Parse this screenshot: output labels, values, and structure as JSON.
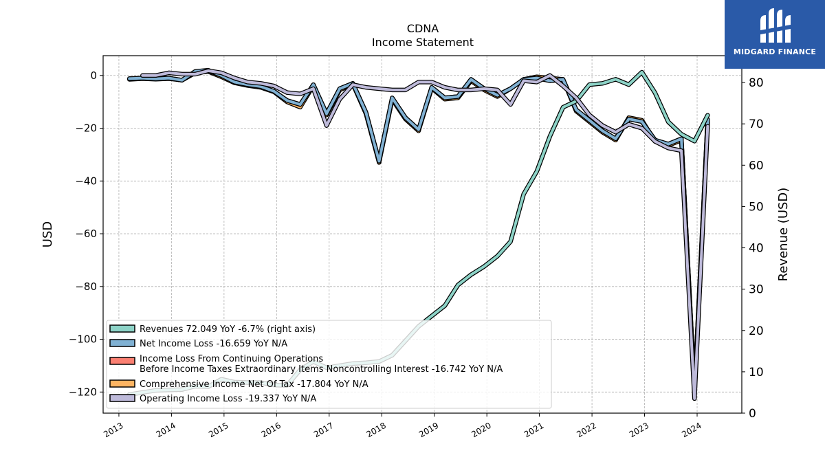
{
  "brand": {
    "name": "MIDGARD FINANCE",
    "icon": "midgard-m-logo-icon",
    "bg_color": "#2a5aa8"
  },
  "chart_data": {
    "type": "line",
    "title": "CDNA",
    "subtitle": "Income Statement",
    "ylabel": "USD",
    "y2label": "Revenue (USD)",
    "ylim": [
      -128,
      7.5
    ],
    "y2lim": [
      0,
      86.5
    ],
    "xlim": [
      2012.7,
      2024.85
    ],
    "x_ticks": [
      "2013",
      "2014",
      "2015",
      "2016",
      "2017",
      "2018",
      "2019",
      "2020",
      "2021",
      "2022",
      "2023",
      "2024"
    ],
    "y_ticks": [
      "0",
      "−20",
      "−40",
      "−60",
      "−80",
      "−100",
      "−120"
    ],
    "y2_ticks": [
      "0",
      "10",
      "20",
      "30",
      "40",
      "50",
      "60",
      "70",
      "80"
    ],
    "grid": true,
    "legend_position": "lower-left",
    "series": [
      {
        "name": "Revenues  72.049 YoY -6.7% (right axis)",
        "color": "#8dd3c7",
        "axis": "right",
        "x": [
          2013.2,
          2013.45,
          2013.7,
          2013.95,
          2014.2,
          2014.45,
          2014.7,
          2014.95,
          2015.2,
          2015.45,
          2015.7,
          2015.95,
          2016.2,
          2016.45,
          2016.7,
          2016.95,
          2017.2,
          2017.45,
          2017.7,
          2017.95,
          2018.2,
          2018.45,
          2018.7,
          2018.95,
          2019.2,
          2019.45,
          2019.7,
          2019.95,
          2020.2,
          2020.45,
          2020.7,
          2020.95,
          2021.2,
          2021.45,
          2021.7,
          2021.95,
          2022.2,
          2022.45,
          2022.7,
          2022.95,
          2023.2,
          2023.45,
          2023.7,
          2023.95,
          2024.2
        ],
        "y": [
          4.5,
          5.0,
          5.5,
          5.6,
          5.7,
          6.5,
          6.4,
          8.2,
          7.5,
          7.4,
          7.4,
          6.8,
          6.7,
          10.5,
          12.5,
          11.0,
          11.5,
          12.0,
          12.2,
          12.5,
          14.0,
          17.5,
          21.0,
          23.5,
          26.0,
          31.0,
          33.5,
          35.5,
          38.0,
          41.5,
          53.0,
          58.5,
          67.0,
          74.0,
          75.5,
          79.5,
          79.8,
          80.8,
          79.5,
          82.5,
          77.5,
          70.5,
          67.5,
          65.8,
          72.1
        ]
      },
      {
        "name": "Net Income Loss  -16.659 YoY N/A",
        "color": "#80b1d3",
        "axis": "left",
        "x": [
          2013.2,
          2013.45,
          2013.7,
          2013.95,
          2014.2,
          2014.45,
          2014.7,
          2014.95,
          2015.2,
          2015.45,
          2015.7,
          2015.95,
          2016.2,
          2016.45,
          2016.7,
          2016.95,
          2017.2,
          2017.45,
          2017.7,
          2017.95,
          2018.2,
          2018.45,
          2018.7,
          2018.95,
          2019.2,
          2019.45,
          2019.7,
          2019.95,
          2020.2,
          2020.45,
          2020.7,
          2020.95,
          2021.2,
          2021.45,
          2021.7,
          2021.95,
          2022.2,
          2022.45,
          2022.7,
          2022.95,
          2023.2,
          2023.45,
          2023.7,
          2023.95,
          2024.2
        ],
        "y": [
          -1.2,
          -1.0,
          -1.3,
          -1.0,
          -1.8,
          1.5,
          2.0,
          0.0,
          -2.5,
          -3.5,
          -4.2,
          -6.0,
          -9.5,
          -11.0,
          -3.5,
          -14.5,
          -5.0,
          -3.0,
          -14.0,
          -32.5,
          -8.5,
          -16.0,
          -20.5,
          -4.5,
          -8.5,
          -8.0,
          -1.5,
          -5.0,
          -7.5,
          -5.0,
          -1.5,
          -1.0,
          -2.0,
          -1.5,
          -13.0,
          -17.0,
          -21.0,
          -24.0,
          -16.5,
          -17.5,
          -24.5,
          -26.0,
          -24.0,
          -119.5,
          -16.7
        ]
      },
      {
        "name": "Income Loss From Continuing Operations\nBefore Income Taxes Extraordinary Items Noncontrolling Interest  -16.742 YoY N/A",
        "color": "#fb8072",
        "axis": "left",
        "x": [
          2013.2,
          2013.45,
          2013.7,
          2013.95,
          2014.2,
          2014.45,
          2014.7,
          2014.95,
          2015.2,
          2015.45,
          2015.7,
          2015.95,
          2016.2,
          2016.45,
          2016.7,
          2016.95,
          2017.2,
          2017.45,
          2017.7,
          2017.95,
          2018.2,
          2018.45,
          2018.7,
          2018.95,
          2019.2,
          2019.45,
          2019.7,
          2019.95,
          2020.2,
          2020.45,
          2020.7,
          2020.95,
          2021.2,
          2021.45,
          2021.7,
          2021.95,
          2022.2,
          2022.45,
          2022.7,
          2022.95,
          2023.2,
          2023.45,
          2023.7,
          2023.95,
          2024.2
        ],
        "y": [
          -1.2,
          -1.0,
          -1.3,
          -1.0,
          -1.8,
          1.0,
          1.8,
          0.0,
          -2.5,
          -3.5,
          -4.2,
          -6.0,
          -9.5,
          -11.0,
          -3.5,
          -14.5,
          -5.0,
          -3.0,
          -14.0,
          -32.5,
          -8.5,
          -16.0,
          -20.5,
          -4.5,
          -8.5,
          -8.0,
          -1.5,
          -5.0,
          -7.5,
          -5.0,
          -1.5,
          -1.0,
          -2.0,
          -1.5,
          -13.0,
          -17.0,
          -21.0,
          -24.0,
          -16.5,
          -17.5,
          -24.5,
          -26.0,
          -24.0,
          -119.5,
          -16.7
        ]
      },
      {
        "name": "Comprehensive Income Net Of Tax  -17.804 YoY N/A",
        "color": "#fdb462",
        "axis": "left",
        "x": [
          2013.2,
          2013.45,
          2013.7,
          2013.95,
          2014.2,
          2014.45,
          2014.7,
          2014.95,
          2015.2,
          2015.45,
          2015.7,
          2015.95,
          2016.2,
          2016.45,
          2016.7,
          2016.95,
          2017.2,
          2017.45,
          2017.7,
          2017.95,
          2018.2,
          2018.45,
          2018.7,
          2018.95,
          2019.2,
          2019.45,
          2019.7,
          2019.95,
          2020.2,
          2020.45,
          2020.7,
          2020.95,
          2021.2,
          2021.45,
          2021.7,
          2021.95,
          2022.2,
          2022.45,
          2022.7,
          2022.95,
          2023.2,
          2023.45,
          2023.7,
          2023.95,
          2024.2
        ],
        "y": [
          -1.5,
          -1.2,
          -1.4,
          -1.2,
          -1.8,
          1.0,
          1.5,
          -0.5,
          -2.8,
          -3.8,
          -4.5,
          -6.2,
          -10.0,
          -12.0,
          -3.8,
          -15.0,
          -5.5,
          -3.2,
          -14.5,
          -33.0,
          -9.0,
          -16.5,
          -21.0,
          -4.8,
          -9.0,
          -8.5,
          -2.0,
          -5.5,
          -8.0,
          -5.0,
          -1.5,
          -0.5,
          -1.0,
          -1.5,
          -13.5,
          -17.5,
          -21.5,
          -24.5,
          -16.0,
          -17.0,
          -25.0,
          -26.5,
          -24.5,
          -121.0,
          -17.8
        ]
      },
      {
        "name": "Operating Income Loss  -19.337 YoY N/A",
        "color": "#bebada",
        "axis": "left",
        "x": [
          2013.45,
          2013.7,
          2013.95,
          2014.2,
          2014.45,
          2014.7,
          2014.95,
          2015.2,
          2015.45,
          2015.7,
          2015.95,
          2016.2,
          2016.45,
          2016.7,
          2016.95,
          2017.2,
          2017.45,
          2017.7,
          2017.95,
          2018.2,
          2018.45,
          2018.7,
          2018.95,
          2019.2,
          2019.45,
          2019.7,
          2019.95,
          2020.2,
          2020.45,
          2020.7,
          2020.95,
          2021.2,
          2021.45,
          2021.7,
          2021.95,
          2022.2,
          2022.45,
          2022.7,
          2022.95,
          2023.2,
          2023.45,
          2023.7,
          2023.95,
          2024.2
        ],
        "y": [
          0.0,
          0.0,
          1.0,
          0.5,
          0.5,
          1.8,
          1.0,
          -1.0,
          -2.5,
          -3.0,
          -4.0,
          -6.5,
          -7.0,
          -5.0,
          -19.0,
          -9.0,
          -3.5,
          -4.5,
          -5.0,
          -5.5,
          -5.5,
          -2.5,
          -2.5,
          -4.5,
          -5.5,
          -5.5,
          -5.0,
          -5.5,
          -11.0,
          -2.0,
          -2.5,
          0.0,
          -4.0,
          -8.5,
          -15.0,
          -19.0,
          -21.5,
          -18.5,
          -20.0,
          -25.0,
          -27.5,
          -28.5,
          -122.5,
          -19.3
        ]
      }
    ]
  }
}
